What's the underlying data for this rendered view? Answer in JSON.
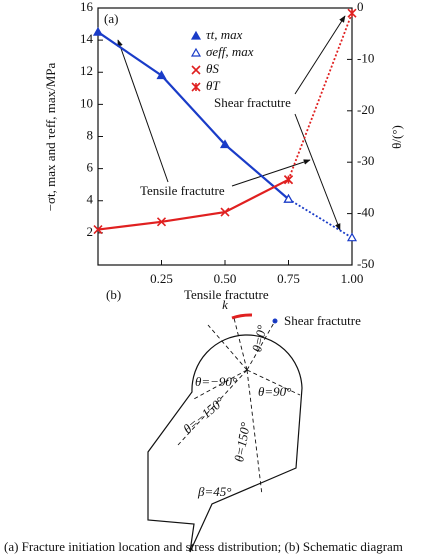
{
  "chart_data": {
    "type": "line",
    "panel_label": "(a)",
    "x_label": "k",
    "y_label": "−σt, max and τeff, max/MPa",
    "y2_label": "θ/(°)",
    "xlim": [
      0,
      1
    ],
    "xticks": [
      0.25,
      {
        "value": 0.5,
        "label": "0.50"
      },
      0.75,
      {
        "value": 1,
        "label": "1.00"
      }
    ],
    "ylim": [
      0,
      16
    ],
    "yticks": [
      2,
      4,
      6,
      8,
      10,
      12,
      14,
      16
    ],
    "y2lim": [
      -50,
      0
    ],
    "y2ticks": [
      -50,
      -40,
      -30,
      -20,
      -10,
      0
    ],
    "series": [
      {
        "name": "τt, max",
        "color": "#1a3cc8",
        "marker": "filled-triangle",
        "style": "solid",
        "x": [
          0,
          0.25,
          0.5,
          0.75
        ],
        "values": [
          14.5,
          11.8,
          7.5,
          4.1
        ]
      },
      {
        "name": "σeff, max",
        "color": "#1a3cc8",
        "marker": "open-triangle",
        "style": "dotted",
        "x": [
          0.75,
          1
        ],
        "values": [
          4.1,
          1.7
        ]
      },
      {
        "name": "θS",
        "color": "#e02020",
        "marker": "cross",
        "style": "solid",
        "axis": "y2",
        "x": [
          0,
          0.25,
          0.5,
          0.75
        ],
        "values": [
          -43.1,
          -41.6,
          -39.7,
          -33.4
        ]
      },
      {
        "name": "θT",
        "color": "#e02020",
        "marker": "star",
        "style": "dotted",
        "axis": "y2",
        "x": [
          0.75,
          1
        ],
        "values": [
          -33.4,
          -1
        ]
      }
    ],
    "annotations": [
      "Tensile fractutre",
      "Shear fractutre"
    ]
  },
  "diagram": {
    "panel_label": "(b)",
    "tensile_label": "Tensile fractutre",
    "shear_label": "Shear fractutre",
    "angles": [
      "θ=0°",
      "θ=−90°",
      "θ=90°",
      "θ=−150°",
      "θ=150°"
    ],
    "beta": "β=45°"
  },
  "caption": "(a)  Fracture   initiation location and stress distribution; (b) Schematic diagram"
}
